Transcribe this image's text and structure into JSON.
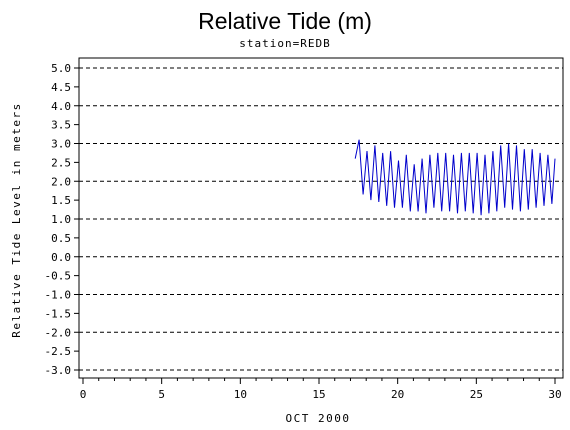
{
  "chart_data": {
    "type": "line",
    "title": "Relative Tide (m)",
    "subtitle": "station=REDB",
    "xlabel": "OCT 2000",
    "ylabel": "Relative Tide Level in meters",
    "xlim": [
      0,
      30
    ],
    "ylim": [
      -3.0,
      5.0
    ],
    "x_ticks": [
      0,
      5,
      10,
      15,
      20,
      25,
      30
    ],
    "y_ticks": [
      "5.0",
      "4.5",
      "4.0",
      "3.5",
      "3.0",
      "2.5",
      "2.0",
      "1.5",
      "1.0",
      "0.5",
      "0.0",
      "-0.5",
      "-1.0",
      "-1.5",
      "-2.0",
      "-2.5",
      "-3.0"
    ],
    "gridlines_y": [
      5.0,
      4.0,
      3.0,
      2.0,
      1.0,
      0.0,
      -1.0,
      -2.0,
      -3.0
    ],
    "grid": "dashed horizontal",
    "series_color": "#0000cc",
    "series": [
      {
        "x": [
          17.3,
          17.55,
          17.8,
          18.05,
          18.3,
          18.55,
          18.8,
          19.05,
          19.3,
          19.55,
          19.8,
          20.05,
          20.3,
          20.55,
          20.8,
          21.05,
          21.3,
          21.55,
          21.8,
          22.05,
          22.3,
          22.55,
          22.8,
          23.05,
          23.3,
          23.55,
          23.8,
          24.05,
          24.3,
          24.55,
          24.8,
          25.05,
          25.3,
          25.55,
          25.8,
          26.05,
          26.3,
          26.55,
          26.8,
          27.05,
          27.3,
          27.55,
          27.8,
          28.05,
          28.3,
          28.55,
          28.8,
          29.05,
          29.3,
          29.55,
          29.8,
          30.0
        ],
        "y": [
          2.6,
          3.1,
          1.65,
          2.8,
          1.5,
          2.95,
          1.45,
          2.75,
          1.35,
          2.8,
          1.3,
          2.55,
          1.3,
          2.7,
          1.2,
          2.45,
          1.2,
          2.6,
          1.15,
          2.7,
          1.3,
          2.75,
          1.2,
          2.75,
          1.2,
          2.7,
          1.15,
          2.75,
          1.2,
          2.75,
          1.15,
          2.75,
          1.1,
          2.7,
          1.15,
          2.8,
          1.2,
          2.95,
          1.3,
          3.0,
          1.25,
          2.95,
          1.2,
          2.85,
          1.25,
          2.85,
          1.3,
          2.75,
          1.35,
          2.7,
          1.4,
          2.6
        ]
      }
    ]
  }
}
